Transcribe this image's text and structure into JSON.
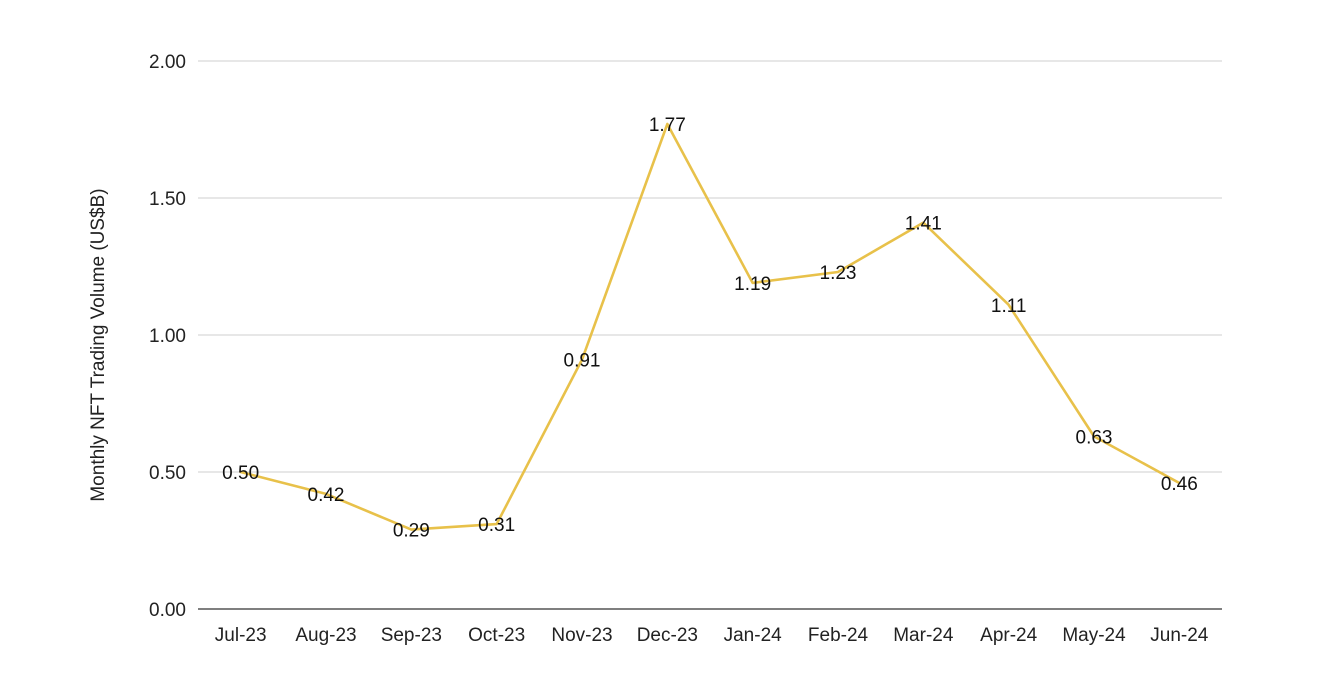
{
  "chart_data": {
    "type": "line",
    "title": "",
    "xlabel": "",
    "ylabel": "Monthly NFT Trading Volume (US$B)",
    "categories": [
      "Jul-23",
      "Aug-23",
      "Sep-23",
      "Oct-23",
      "Nov-23",
      "Dec-23",
      "Jan-24",
      "Feb-24",
      "Mar-24",
      "Apr-24",
      "May-24",
      "Jun-24"
    ],
    "series": [
      {
        "values": [
          0.5,
          0.42,
          0.29,
          0.31,
          0.91,
          1.77,
          1.19,
          1.23,
          1.41,
          1.11,
          0.63,
          0.46
        ],
        "data_labels": [
          "0.50",
          "0.42",
          "0.29",
          "0.31",
          "0.91",
          "1.77",
          "1.19",
          "1.23",
          "1.41",
          "1.11",
          "0.63",
          "0.46"
        ],
        "color": "#e8c14a"
      }
    ],
    "ylim": [
      0,
      2
    ],
    "yticks": [
      0,
      0.5,
      1,
      1.5,
      2
    ],
    "ytick_labels": [
      "0.00",
      "0.50",
      "1.00",
      "1.50",
      "2.00"
    ],
    "grid": true,
    "legend": "none"
  }
}
